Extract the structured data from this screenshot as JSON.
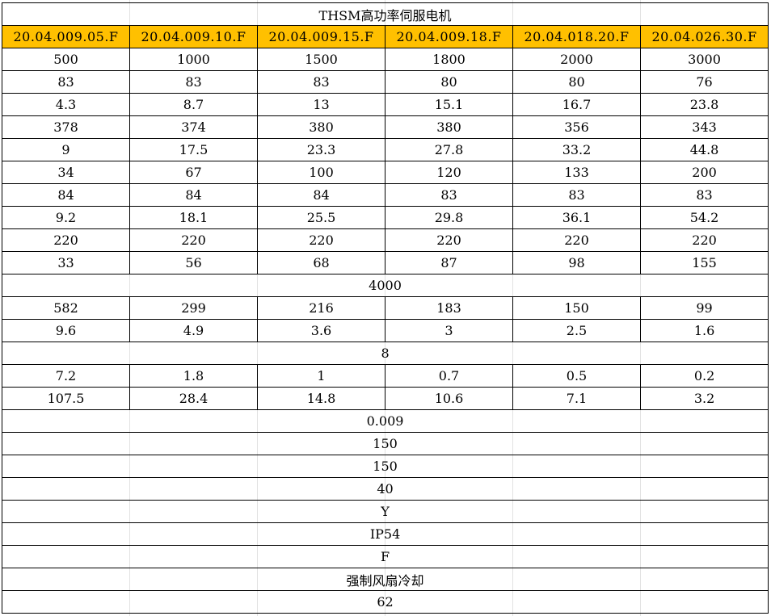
{
  "title": "THSM高功率伺服电机",
  "header_color": "#FFC000",
  "models": [
    "20.04.009.05.F",
    "20.04.009.10.F",
    "20.04.009.15.F",
    "20.04.009.18.F",
    "20.04.018.20.F",
    "20.04.026.30.F"
  ],
  "rows": [
    {
      "type": "cells",
      "values": [
        "500",
        "1000",
        "1500",
        "1800",
        "2000",
        "3000"
      ]
    },
    {
      "type": "cells",
      "values": [
        "83",
        "83",
        "83",
        "80",
        "80",
        "76"
      ]
    },
    {
      "type": "cells",
      "values": [
        "4.3",
        "8.7",
        "13",
        "15.1",
        "16.7",
        "23.8"
      ]
    },
    {
      "type": "cells",
      "values": [
        "378",
        "374",
        "380",
        "380",
        "356",
        "343"
      ]
    },
    {
      "type": "cells",
      "values": [
        "9",
        "17.5",
        "23.3",
        "27.8",
        "33.2",
        "44.8"
      ]
    },
    {
      "type": "cells",
      "values": [
        "34",
        "67",
        "100",
        "120",
        "133",
        "200"
      ]
    },
    {
      "type": "cells",
      "values": [
        "84",
        "84",
        "84",
        "83",
        "83",
        "83"
      ]
    },
    {
      "type": "cells",
      "values": [
        "9.2",
        "18.1",
        "25.5",
        "29.8",
        "36.1",
        "54.2"
      ]
    },
    {
      "type": "cells",
      "values": [
        "220",
        "220",
        "220",
        "220",
        "220",
        "220"
      ]
    },
    {
      "type": "cells",
      "values": [
        "33",
        "56",
        "68",
        "87",
        "98",
        "155"
      ]
    },
    {
      "type": "merged",
      "value": "4000"
    },
    {
      "type": "cells",
      "values": [
        "582",
        "299",
        "216",
        "183",
        "150",
        "99"
      ]
    },
    {
      "type": "cells",
      "values": [
        "9.6",
        "4.9",
        "3.6",
        "3",
        "2.5",
        "1.6"
      ]
    },
    {
      "type": "merged",
      "value": "8"
    },
    {
      "type": "cells",
      "values": [
        "7.2",
        "1.8",
        "1",
        "0.7",
        "0.5",
        "0.2"
      ]
    },
    {
      "type": "cells",
      "values": [
        "107.5",
        "28.4",
        "14.8",
        "10.6",
        "7.1",
        "3.2"
      ]
    },
    {
      "type": "merged",
      "value": "0.009"
    },
    {
      "type": "merged",
      "value": "150"
    },
    {
      "type": "merged",
      "value": "150"
    },
    {
      "type": "merged",
      "value": "40"
    },
    {
      "type": "merged",
      "value": "Y"
    },
    {
      "type": "merged",
      "value": "IP54"
    },
    {
      "type": "merged",
      "value": "F"
    },
    {
      "type": "merged",
      "value": "强制风扇冷却"
    },
    {
      "type": "merged",
      "value": "62"
    }
  ]
}
